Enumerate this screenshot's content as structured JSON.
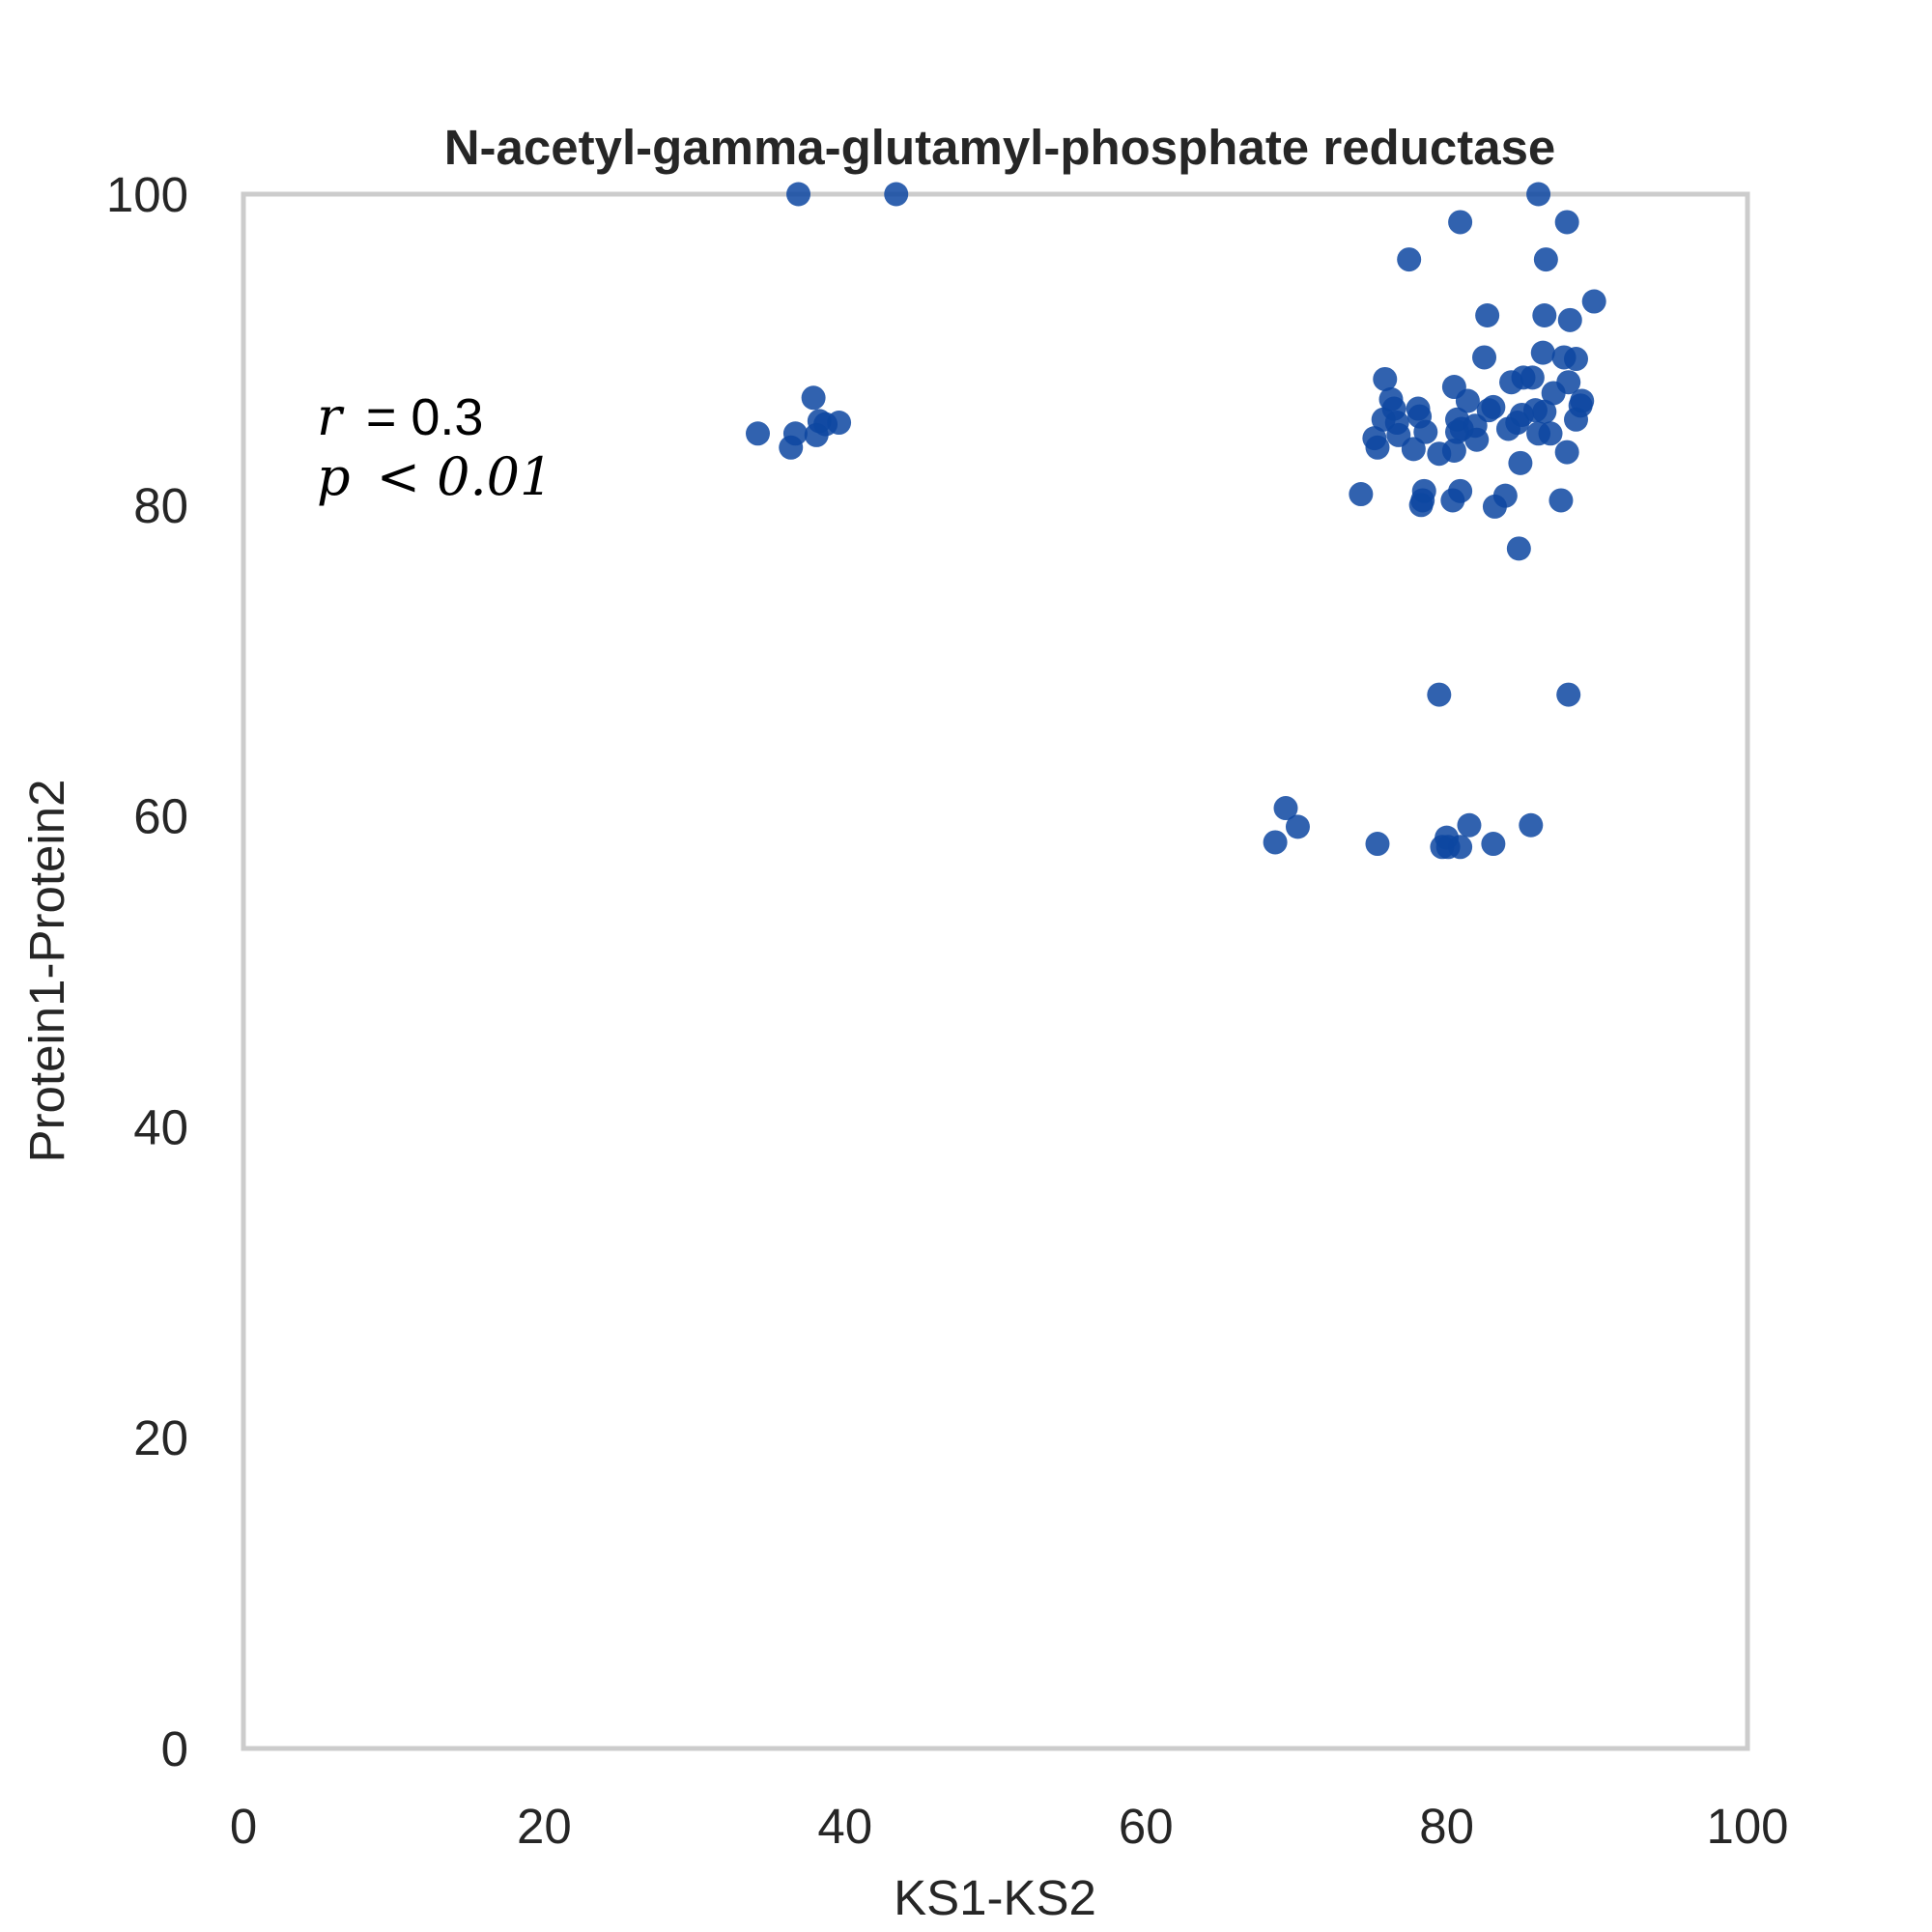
{
  "chart_data": {
    "type": "scatter",
    "title": "N-acetyl-gamma-glutamyl-phosphate reductase",
    "xlabel": "KS1-KS2",
    "ylabel": "Protein1-Protein2",
    "xlim": [
      0,
      100
    ],
    "ylim": [
      0,
      100
    ],
    "xticks": [
      "0",
      "20",
      "40",
      "60",
      "80",
      "100"
    ],
    "yticks": [
      "0",
      "20",
      "40",
      "60",
      "80",
      "100"
    ],
    "grid": false,
    "annotation": {
      "r_label": "r",
      "r_value": "0.3",
      "p_label": "p",
      "p_value": "0.01"
    },
    "colors": {
      "points": "#0d47a1",
      "frame": "#cccccc",
      "text": "#262626"
    },
    "series": [
      {
        "points": [
          [
            36.9,
            100
          ],
          [
            43.4,
            100
          ],
          [
            86.1,
            100
          ],
          [
            80.9,
            98.2
          ],
          [
            88.0,
            98.2
          ],
          [
            77.5,
            95.8
          ],
          [
            86.6,
            95.8
          ],
          [
            89.8,
            93.1
          ],
          [
            82.7,
            92.2
          ],
          [
            86.5,
            92.2
          ],
          [
            88.2,
            91.9
          ],
          [
            86.4,
            89.8
          ],
          [
            82.5,
            89.5
          ],
          [
            87.8,
            89.5
          ],
          [
            88.6,
            89.4
          ],
          [
            75.9,
            88.1
          ],
          [
            84.3,
            87.9
          ],
          [
            85.1,
            88.2
          ],
          [
            85.7,
            88.2
          ],
          [
            88.1,
            87.9
          ],
          [
            80.5,
            87.6
          ],
          [
            87.1,
            87.2
          ],
          [
            76.3,
            86.8
          ],
          [
            81.4,
            86.7
          ],
          [
            89.0,
            86.7
          ],
          [
            88.9,
            86.4
          ],
          [
            78.1,
            86.2
          ],
          [
            83.1,
            86.3
          ],
          [
            82.8,
            86.1
          ],
          [
            85.9,
            86.1
          ],
          [
            76.5,
            86.2
          ],
          [
            86.5,
            86.0
          ],
          [
            78.2,
            85.7
          ],
          [
            85.0,
            85.8
          ],
          [
            75.8,
            85.5
          ],
          [
            76.7,
            85.3
          ],
          [
            80.7,
            85.5
          ],
          [
            84.7,
            85.3
          ],
          [
            88.6,
            85.5
          ],
          [
            81.0,
            84.9
          ],
          [
            81.9,
            85.1
          ],
          [
            84.1,
            84.9
          ],
          [
            78.6,
            84.7
          ],
          [
            86.1,
            84.6
          ],
          [
            86.9,
            84.6
          ],
          [
            76.8,
            84.5
          ],
          [
            80.7,
            84.7
          ],
          [
            75.2,
            84.3
          ],
          [
            82.0,
            84.2
          ],
          [
            75.4,
            83.7
          ],
          [
            77.8,
            83.6
          ],
          [
            80.5,
            83.5
          ],
          [
            79.5,
            83.3
          ],
          [
            88.0,
            83.4
          ],
          [
            84.9,
            82.7
          ],
          [
            74.3,
            80.7
          ],
          [
            78.5,
            80.9
          ],
          [
            80.9,
            80.9
          ],
          [
            83.9,
            80.6
          ],
          [
            78.4,
            80.3
          ],
          [
            80.4,
            80.3
          ],
          [
            87.6,
            80.3
          ],
          [
            78.3,
            80.0
          ],
          [
            83.2,
            79.9
          ],
          [
            84.8,
            77.2
          ],
          [
            79.5,
            67.8
          ],
          [
            88.1,
            67.8
          ],
          [
            69.3,
            60.5
          ],
          [
            70.1,
            59.3
          ],
          [
            81.5,
            59.4
          ],
          [
            85.6,
            59.4
          ],
          [
            68.6,
            58.3
          ],
          [
            75.4,
            58.2
          ],
          [
            80.0,
            58.6
          ],
          [
            83.1,
            58.2
          ],
          [
            79.7,
            58.0
          ],
          [
            80.1,
            58.0
          ],
          [
            80.9,
            58.0
          ],
          [
            37.9,
            86.9
          ],
          [
            38.3,
            85.4
          ],
          [
            39.6,
            85.3
          ],
          [
            38.7,
            85.2
          ],
          [
            34.2,
            84.6
          ],
          [
            36.7,
            84.6
          ],
          [
            38.1,
            84.5
          ],
          [
            36.4,
            83.7
          ]
        ]
      }
    ]
  }
}
